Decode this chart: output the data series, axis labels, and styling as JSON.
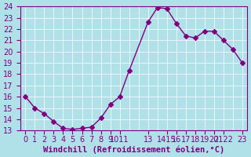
{
  "x": [
    0,
    1,
    2,
    3,
    4,
    5,
    6,
    7,
    8,
    9,
    10,
    11,
    13,
    14,
    15,
    16,
    17,
    18,
    19,
    20,
    21,
    22,
    23
  ],
  "y": [
    16.0,
    15.0,
    14.5,
    13.8,
    13.2,
    13.1,
    13.2,
    13.3,
    14.1,
    15.3,
    16.0,
    18.3,
    22.6,
    23.9,
    23.8,
    22.5,
    21.4,
    21.2,
    21.8,
    21.8,
    21.0,
    20.2,
    19.0
  ],
  "line_color": "#800080",
  "marker": "D",
  "marker_size": 3,
  "bg_color": "#b0e0e8",
  "grid_color": "#ffffff",
  "ylim": [
    13,
    24
  ],
  "yticks": [
    13,
    14,
    15,
    16,
    17,
    18,
    19,
    20,
    21,
    22,
    23,
    24
  ],
  "xtick_positions": [
    0,
    1,
    2,
    3,
    4,
    5,
    6,
    7,
    8,
    9,
    10,
    13,
    15,
    16,
    17,
    18,
    19,
    20,
    21,
    23
  ],
  "xtick_labels": [
    "0",
    "1",
    "2",
    "3",
    "4",
    "5",
    "6",
    "7",
    "8",
    "9",
    "1011",
    "13",
    "1415",
    "16",
    "17",
    "18",
    "19",
    "20",
    "2122",
    "23"
  ],
  "xlabel": "Windchill (Refroidissement éolien,°C)",
  "xlabel_color": "#800080",
  "tick_color": "#800080",
  "tick_fontsize": 7.0,
  "xlabel_fontsize": 7.5
}
